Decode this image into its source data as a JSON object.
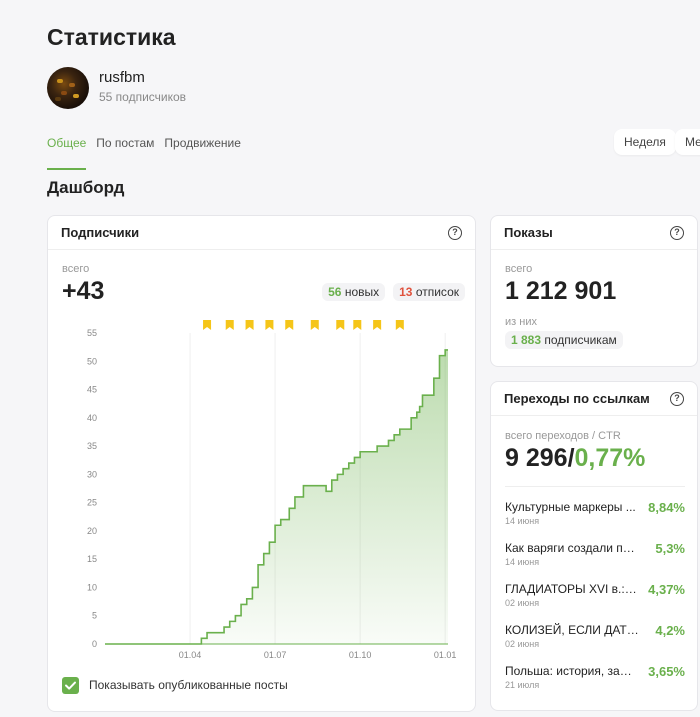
{
  "page": {
    "title": "Статистика"
  },
  "channel": {
    "name": "rusfbm",
    "subscribers": "55 подписчиков"
  },
  "tabs": [
    {
      "label": "Общее",
      "active": true
    },
    {
      "label": "По постам",
      "active": false
    },
    {
      "label": "Продвижение",
      "active": false
    }
  ],
  "periods": [
    {
      "label": "Неделя"
    },
    {
      "label": "Ме"
    }
  ],
  "dashboard": {
    "title": "Дашборд"
  },
  "subscribers_card": {
    "title": "Подписчики",
    "total_label": "всего",
    "total_value": "+43",
    "new_count": "56",
    "new_label": "новых",
    "unsub_count": "13",
    "unsub_label": "отписок",
    "show_posts_label": "Показывать опубликованные посты",
    "show_posts_checked": true
  },
  "impressions_card": {
    "title": "Показы",
    "total_label": "всего",
    "total_value": "1 212 901",
    "of_label": "из них",
    "subs_count": "1 883",
    "subs_label": "подписчикам"
  },
  "links_card": {
    "title": "Переходы по ссылкам",
    "total_label": "всего переходов / CTR",
    "total_value": "9 296",
    "separator": "/",
    "ctr": "0,77%",
    "items": [
      {
        "title": "Культурные маркеры ...",
        "date": "14 июня",
        "value": "8,84%"
      },
      {
        "title": "Как варяги создали пер...",
        "date": "14 июня",
        "value": "5,3%"
      },
      {
        "title": "ГЛАДИАТОРЫ XVI в.: б...",
        "date": "02 июня",
        "value": "4,37%"
      },
      {
        "title": "КОЛИЗЕЙ, ЕСЛИ ДАТЫ ...",
        "date": "02 июня",
        "value": "4,2%"
      },
      {
        "title": "Польша: история, заш...",
        "date": "21 июля",
        "value": "3,65%"
      }
    ]
  },
  "colors": {
    "accent": "#6ab04c",
    "danger": "#e0533e",
    "marker": "#f5c518"
  },
  "icons": {
    "help": "question-circle-icon",
    "post_marker": "bookmark-icon",
    "check": "check-icon"
  },
  "chart_data": {
    "type": "area",
    "y_ticks": [
      "55",
      "50",
      "45",
      "40",
      "35",
      "30",
      "25",
      "20",
      "15",
      "10",
      "5",
      "0"
    ],
    "x_ticks": [
      {
        "label": "01.04",
        "x": 3
      },
      {
        "label": "01.07",
        "x": 6
      },
      {
        "label": "01.10",
        "x": 9
      },
      {
        "label": "01.01",
        "x": 12
      }
    ],
    "xlim": [
      0,
      12.1
    ],
    "ylim": [
      0,
      55
    ],
    "x": [
      0,
      3.3,
      3.4,
      3.6,
      3.9,
      4.2,
      4.4,
      4.6,
      4.8,
      5.0,
      5.2,
      5.4,
      5.6,
      5.8,
      6.0,
      6.2,
      6.5,
      6.7,
      7.0,
      7.2,
      7.4,
      7.6,
      7.8,
      8.0,
      8.2,
      8.4,
      8.6,
      8.8,
      9.0,
      9.2,
      9.4,
      9.6,
      9.8,
      10.0,
      10.2,
      10.4,
      10.6,
      10.8,
      11.0,
      11.1,
      11.2,
      11.4,
      11.6,
      11.8,
      12.0,
      12.1
    ],
    "values": [
      0,
      0,
      1,
      2,
      2,
      3,
      4,
      5,
      7,
      8,
      10,
      14,
      16,
      18,
      21,
      22,
      24,
      26,
      28,
      28,
      28,
      28,
      27,
      29,
      30,
      31,
      32,
      33,
      34,
      34,
      34,
      35,
      35,
      36,
      37,
      38,
      38,
      40,
      41,
      42,
      44,
      44,
      47,
      51,
      52,
      52
    ],
    "post_markers_x": [
      3.6,
      4.4,
      5.1,
      5.8,
      6.5,
      7.4,
      8.3,
      8.9,
      9.6,
      10.4
    ]
  }
}
